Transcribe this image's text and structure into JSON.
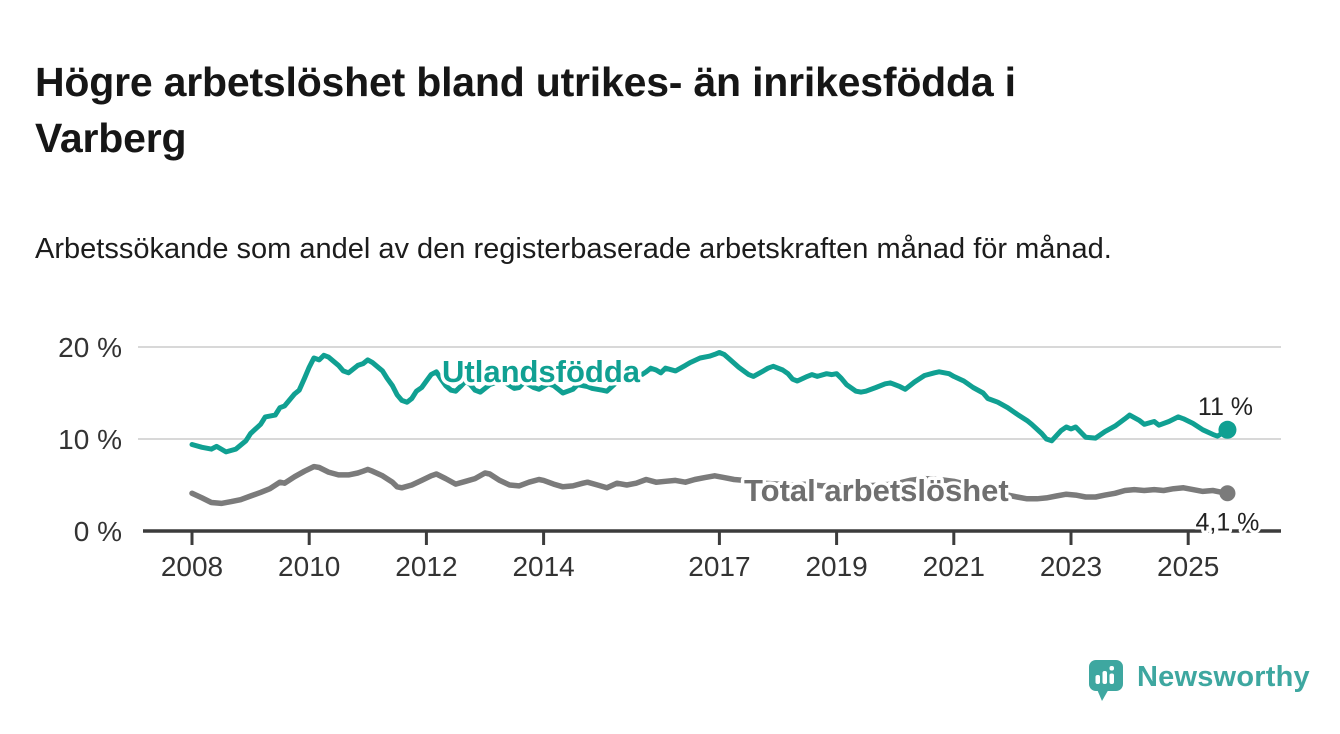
{
  "header": {
    "title": "Högre arbetslöshet bland utrikes- än inrikesfödda i Varberg",
    "subtitle": "Arbetssökande som andel av den registerbaserade arbetskraften månad för månad."
  },
  "footer": {
    "brand": "Newsworthy"
  },
  "colors": {
    "background": "#ffffff",
    "title_text": "#161616",
    "axis_line": "#3c3c3c",
    "gridline": "#d8d8d8",
    "tick_text": "#333333",
    "annotation_text": "#222222",
    "teal_line": "#10a092",
    "gray_line": "#7b7b7b",
    "gray_label": "#6f6f6f",
    "logo_teal": "#3ea7a0"
  },
  "chart_data": {
    "type": "line",
    "title": "Högre arbetslöshet bland utrikes- än inrikesfödda i Varberg",
    "subtitle": "Arbetssökande som andel av den registerbaserade arbetskraften månad för månad.",
    "unit": "%",
    "grid": "horizontal",
    "legend_position": "inline-labels",
    "x_axis": {
      "range": [
        2008,
        2025.75
      ],
      "ticks": [
        {
          "value": 2008,
          "label": "2008"
        },
        {
          "value": 2010,
          "label": "2010"
        },
        {
          "value": 2012,
          "label": "2012"
        },
        {
          "value": 2014,
          "label": "2014"
        },
        {
          "value": 2017,
          "label": "2017"
        },
        {
          "value": 2019,
          "label": "2019"
        },
        {
          "value": 2021,
          "label": "2021"
        },
        {
          "value": 2023,
          "label": "2023"
        },
        {
          "value": 2025,
          "label": "2025"
        }
      ]
    },
    "y_axis": {
      "range": [
        0,
        21
      ],
      "ticks": [
        {
          "value": 0,
          "label": "0 %"
        },
        {
          "value": 10,
          "label": "10 %"
        },
        {
          "value": 20,
          "label": "20 %"
        }
      ]
    },
    "series": [
      {
        "id": "utlandsfodda",
        "name": "Utlandsfödda",
        "color": "#10a092",
        "label_color": "#10a092",
        "width": 5,
        "dot_radius": 9,
        "end_label": "11 %",
        "end_label_position": "above",
        "points": [
          [
            2008.0,
            9.4
          ],
          [
            2008.17,
            9.1
          ],
          [
            2008.33,
            8.9
          ],
          [
            2008.42,
            9.2
          ],
          [
            2008.58,
            8.6
          ],
          [
            2008.75,
            8.9
          ],
          [
            2008.92,
            9.8
          ],
          [
            2009.0,
            10.6
          ],
          [
            2009.17,
            11.6
          ],
          [
            2009.25,
            12.4
          ],
          [
            2009.42,
            12.6
          ],
          [
            2009.5,
            13.4
          ],
          [
            2009.58,
            13.6
          ],
          [
            2009.75,
            14.9
          ],
          [
            2009.83,
            15.3
          ],
          [
            2009.92,
            16.6
          ],
          [
            2010.0,
            17.8
          ],
          [
            2010.08,
            18.8
          ],
          [
            2010.17,
            18.6
          ],
          [
            2010.25,
            19.1
          ],
          [
            2010.33,
            18.9
          ],
          [
            2010.5,
            18.0
          ],
          [
            2010.58,
            17.4
          ],
          [
            2010.67,
            17.2
          ],
          [
            2010.83,
            18.0
          ],
          [
            2010.92,
            18.2
          ],
          [
            2011.0,
            18.6
          ],
          [
            2011.08,
            18.3
          ],
          [
            2011.25,
            17.4
          ],
          [
            2011.33,
            16.6
          ],
          [
            2011.42,
            15.8
          ],
          [
            2011.5,
            14.8
          ],
          [
            2011.58,
            14.2
          ],
          [
            2011.67,
            14.0
          ],
          [
            2011.75,
            14.4
          ],
          [
            2011.83,
            15.2
          ],
          [
            2011.92,
            15.6
          ],
          [
            2012.0,
            16.3
          ],
          [
            2012.08,
            17.0
          ],
          [
            2012.17,
            17.3
          ],
          [
            2012.25,
            16.5
          ],
          [
            2012.33,
            15.8
          ],
          [
            2012.42,
            15.3
          ],
          [
            2012.5,
            15.2
          ],
          [
            2012.58,
            15.7
          ],
          [
            2012.67,
            16.3
          ],
          [
            2012.75,
            15.9
          ],
          [
            2012.83,
            15.3
          ],
          [
            2012.92,
            15.1
          ],
          [
            2013.08,
            15.9
          ],
          [
            2013.25,
            16.3
          ],
          [
            2013.33,
            16.2
          ],
          [
            2013.5,
            15.5
          ],
          [
            2013.58,
            15.6
          ],
          [
            2013.67,
            16.2
          ],
          [
            2013.83,
            15.6
          ],
          [
            2013.92,
            15.4
          ],
          [
            2014.08,
            16.0
          ],
          [
            2014.17,
            15.8
          ],
          [
            2014.33,
            15.0
          ],
          [
            2014.5,
            15.4
          ],
          [
            2014.58,
            15.9
          ],
          [
            2014.75,
            15.7
          ],
          [
            2014.83,
            15.5
          ],
          [
            2015.0,
            15.3
          ],
          [
            2015.08,
            15.2
          ],
          [
            2015.25,
            16.2
          ],
          [
            2015.42,
            16.4
          ],
          [
            2015.58,
            16.6
          ],
          [
            2015.75,
            17.3
          ],
          [
            2015.83,
            17.7
          ],
          [
            2015.92,
            17.5
          ],
          [
            2016.0,
            17.2
          ],
          [
            2016.08,
            17.7
          ],
          [
            2016.25,
            17.4
          ],
          [
            2016.42,
            18.0
          ],
          [
            2016.5,
            18.3
          ],
          [
            2016.67,
            18.8
          ],
          [
            2016.83,
            19.0
          ],
          [
            2016.92,
            19.2
          ],
          [
            2017.0,
            19.4
          ],
          [
            2017.08,
            19.2
          ],
          [
            2017.17,
            18.7
          ],
          [
            2017.33,
            17.8
          ],
          [
            2017.5,
            17.0
          ],
          [
            2017.58,
            16.8
          ],
          [
            2017.75,
            17.4
          ],
          [
            2017.83,
            17.7
          ],
          [
            2017.92,
            17.9
          ],
          [
            2018.08,
            17.5
          ],
          [
            2018.17,
            17.1
          ],
          [
            2018.25,
            16.5
          ],
          [
            2018.33,
            16.3
          ],
          [
            2018.5,
            16.8
          ],
          [
            2018.58,
            17.0
          ],
          [
            2018.67,
            16.8
          ],
          [
            2018.83,
            17.1
          ],
          [
            2018.92,
            17.0
          ],
          [
            2019.0,
            17.1
          ],
          [
            2019.08,
            16.6
          ],
          [
            2019.17,
            15.9
          ],
          [
            2019.33,
            15.2
          ],
          [
            2019.42,
            15.1
          ],
          [
            2019.5,
            15.2
          ],
          [
            2019.67,
            15.6
          ],
          [
            2019.83,
            16.0
          ],
          [
            2019.92,
            16.1
          ],
          [
            2020.08,
            15.7
          ],
          [
            2020.17,
            15.4
          ],
          [
            2020.33,
            16.2
          ],
          [
            2020.5,
            16.9
          ],
          [
            2020.67,
            17.2
          ],
          [
            2020.75,
            17.3
          ],
          [
            2020.92,
            17.1
          ],
          [
            2021.0,
            16.8
          ],
          [
            2021.17,
            16.3
          ],
          [
            2021.33,
            15.6
          ],
          [
            2021.5,
            15.0
          ],
          [
            2021.58,
            14.4
          ],
          [
            2021.75,
            14.0
          ],
          [
            2021.92,
            13.4
          ],
          [
            2022.08,
            12.7
          ],
          [
            2022.25,
            12.0
          ],
          [
            2022.33,
            11.6
          ],
          [
            2022.5,
            10.6
          ],
          [
            2022.58,
            10.0
          ],
          [
            2022.67,
            9.8
          ],
          [
            2022.83,
            10.9
          ],
          [
            2022.92,
            11.3
          ],
          [
            2023.0,
            11.1
          ],
          [
            2023.08,
            11.3
          ],
          [
            2023.25,
            10.2
          ],
          [
            2023.42,
            10.1
          ],
          [
            2023.58,
            10.8
          ],
          [
            2023.75,
            11.4
          ],
          [
            2023.92,
            12.2
          ],
          [
            2024.0,
            12.6
          ],
          [
            2024.17,
            12.0
          ],
          [
            2024.25,
            11.6
          ],
          [
            2024.42,
            11.9
          ],
          [
            2024.5,
            11.5
          ],
          [
            2024.67,
            11.9
          ],
          [
            2024.83,
            12.4
          ],
          [
            2024.92,
            12.2
          ],
          [
            2025.08,
            11.7
          ],
          [
            2025.25,
            11.0
          ],
          [
            2025.42,
            10.5
          ],
          [
            2025.5,
            10.3
          ],
          [
            2025.67,
            11.0
          ]
        ]
      },
      {
        "id": "total",
        "name": "Total arbetslöshet",
        "color": "#7b7b7b",
        "label_color": "#6f6f6f",
        "width": 5.5,
        "dot_radius": 8,
        "end_label": "4,1 %",
        "end_label_position": "below",
        "points": [
          [
            2008.0,
            4.1
          ],
          [
            2008.17,
            3.6
          ],
          [
            2008.33,
            3.1
          ],
          [
            2008.5,
            3.0
          ],
          [
            2008.67,
            3.2
          ],
          [
            2008.83,
            3.4
          ],
          [
            2009.0,
            3.8
          ],
          [
            2009.17,
            4.2
          ],
          [
            2009.33,
            4.6
          ],
          [
            2009.5,
            5.3
          ],
          [
            2009.58,
            5.2
          ],
          [
            2009.75,
            5.9
          ],
          [
            2009.92,
            6.5
          ],
          [
            2010.08,
            7.0
          ],
          [
            2010.17,
            6.9
          ],
          [
            2010.33,
            6.4
          ],
          [
            2010.5,
            6.1
          ],
          [
            2010.67,
            6.1
          ],
          [
            2010.83,
            6.3
          ],
          [
            2010.92,
            6.5
          ],
          [
            2011.0,
            6.7
          ],
          [
            2011.08,
            6.5
          ],
          [
            2011.25,
            6.0
          ],
          [
            2011.42,
            5.3
          ],
          [
            2011.5,
            4.8
          ],
          [
            2011.58,
            4.7
          ],
          [
            2011.75,
            5.0
          ],
          [
            2011.92,
            5.5
          ],
          [
            2012.08,
            6.0
          ],
          [
            2012.17,
            6.2
          ],
          [
            2012.33,
            5.7
          ],
          [
            2012.5,
            5.1
          ],
          [
            2012.67,
            5.4
          ],
          [
            2012.83,
            5.7
          ],
          [
            2013.0,
            6.3
          ],
          [
            2013.08,
            6.2
          ],
          [
            2013.25,
            5.5
          ],
          [
            2013.42,
            5.0
          ],
          [
            2013.58,
            4.9
          ],
          [
            2013.75,
            5.3
          ],
          [
            2013.92,
            5.6
          ],
          [
            2014.0,
            5.5
          ],
          [
            2014.17,
            5.1
          ],
          [
            2014.33,
            4.8
          ],
          [
            2014.5,
            4.9
          ],
          [
            2014.67,
            5.2
          ],
          [
            2014.75,
            5.3
          ],
          [
            2014.92,
            5.0
          ],
          [
            2015.08,
            4.7
          ],
          [
            2015.25,
            5.2
          ],
          [
            2015.42,
            5.0
          ],
          [
            2015.58,
            5.2
          ],
          [
            2015.75,
            5.6
          ],
          [
            2015.92,
            5.3
          ],
          [
            2016.08,
            5.4
          ],
          [
            2016.25,
            5.5
          ],
          [
            2016.42,
            5.3
          ],
          [
            2016.58,
            5.6
          ],
          [
            2016.75,
            5.8
          ],
          [
            2016.92,
            6.0
          ],
          [
            2017.08,
            5.8
          ],
          [
            2017.25,
            5.6
          ],
          [
            2017.42,
            5.5
          ],
          [
            2017.58,
            5.3
          ],
          [
            2017.75,
            5.2
          ],
          [
            2018.0,
            5.1
          ],
          [
            2018.25,
            5.0
          ],
          [
            2018.5,
            5.1
          ],
          [
            2018.75,
            4.9
          ],
          [
            2019.0,
            5.0
          ],
          [
            2019.25,
            4.8
          ],
          [
            2019.5,
            4.9
          ],
          [
            2019.75,
            5.0
          ],
          [
            2020.0,
            5.1
          ],
          [
            2020.25,
            5.5
          ],
          [
            2020.5,
            5.7
          ],
          [
            2020.75,
            5.6
          ],
          [
            2021.0,
            5.4
          ],
          [
            2021.25,
            5.0
          ],
          [
            2021.5,
            4.6
          ],
          [
            2021.75,
            4.2
          ],
          [
            2021.92,
            3.9
          ],
          [
            2022.08,
            3.7
          ],
          [
            2022.25,
            3.5
          ],
          [
            2022.42,
            3.5
          ],
          [
            2022.58,
            3.6
          ],
          [
            2022.75,
            3.8
          ],
          [
            2022.92,
            4.0
          ],
          [
            2023.08,
            3.9
          ],
          [
            2023.25,
            3.7
          ],
          [
            2023.42,
            3.7
          ],
          [
            2023.58,
            3.9
          ],
          [
            2023.75,
            4.1
          ],
          [
            2023.92,
            4.4
          ],
          [
            2024.08,
            4.5
          ],
          [
            2024.25,
            4.4
          ],
          [
            2024.42,
            4.5
          ],
          [
            2024.58,
            4.4
          ],
          [
            2024.75,
            4.6
          ],
          [
            2024.92,
            4.7
          ],
          [
            2025.08,
            4.5
          ],
          [
            2025.25,
            4.3
          ],
          [
            2025.42,
            4.4
          ],
          [
            2025.58,
            4.2
          ],
          [
            2025.67,
            4.1
          ]
        ]
      }
    ]
  }
}
